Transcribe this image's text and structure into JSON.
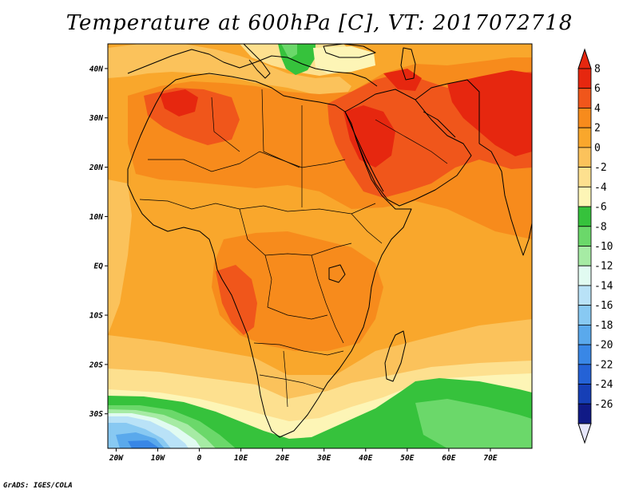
{
  "title": "Temperature at 600hPa [C], VT: 2017072718",
  "credit": "GrADS: IGES/COLA",
  "map": {
    "lon_range": [
      -22,
      80
    ],
    "lat_range": [
      -37,
      45
    ],
    "lat_ticks": [
      {
        "value": 40,
        "label": "40N"
      },
      {
        "value": 30,
        "label": "30N"
      },
      {
        "value": 20,
        "label": "20N"
      },
      {
        "value": 10,
        "label": "10N"
      },
      {
        "value": 0,
        "label": "EQ"
      },
      {
        "value": -10,
        "label": "10S"
      },
      {
        "value": -20,
        "label": "20S"
      },
      {
        "value": -30,
        "label": "30S"
      }
    ],
    "lon_ticks": [
      {
        "value": -20,
        "label": "20W"
      },
      {
        "value": -10,
        "label": "10W"
      },
      {
        "value": 0,
        "label": "0"
      },
      {
        "value": 10,
        "label": "10E"
      },
      {
        "value": 20,
        "label": "20E"
      },
      {
        "value": 30,
        "label": "30E"
      },
      {
        "value": 40,
        "label": "40E"
      },
      {
        "value": 50,
        "label": "50E"
      },
      {
        "value": 60,
        "label": "60E"
      },
      {
        "value": 70,
        "label": "70E"
      }
    ]
  },
  "colorbar": {
    "levels": [
      {
        "label": "8",
        "color": "#e6270f"
      },
      {
        "label": "6",
        "color": "#f0561b"
      },
      {
        "label": "4",
        "color": "#f78b1c"
      },
      {
        "label": "2",
        "color": "#f9a72c"
      },
      {
        "label": "0",
        "color": "#fbc25b"
      },
      {
        "label": "-2",
        "color": "#fde08f"
      },
      {
        "label": "-4",
        "color": "#fdf5b6"
      },
      {
        "label": "-6",
        "color": "#36c23c"
      },
      {
        "label": "-8",
        "color": "#6bd86a"
      },
      {
        "label": "-10",
        "color": "#a6eba4"
      },
      {
        "label": "-12",
        "color": "#e1fbf1"
      },
      {
        "label": "-14",
        "color": "#b9e2f7"
      },
      {
        "label": "-16",
        "color": "#88c9f2"
      },
      {
        "label": "-18",
        "color": "#5aa9ec"
      },
      {
        "label": "-20",
        "color": "#3987e6"
      },
      {
        "label": "-22",
        "color": "#2462d6"
      },
      {
        "label": "-24",
        "color": "#163fb6"
      },
      {
        "label": "-26",
        "color": "#101a86"
      }
    ],
    "top_arrow_color": "#e6270f",
    "bottom_arrow_color": "#e6e6fb"
  }
}
